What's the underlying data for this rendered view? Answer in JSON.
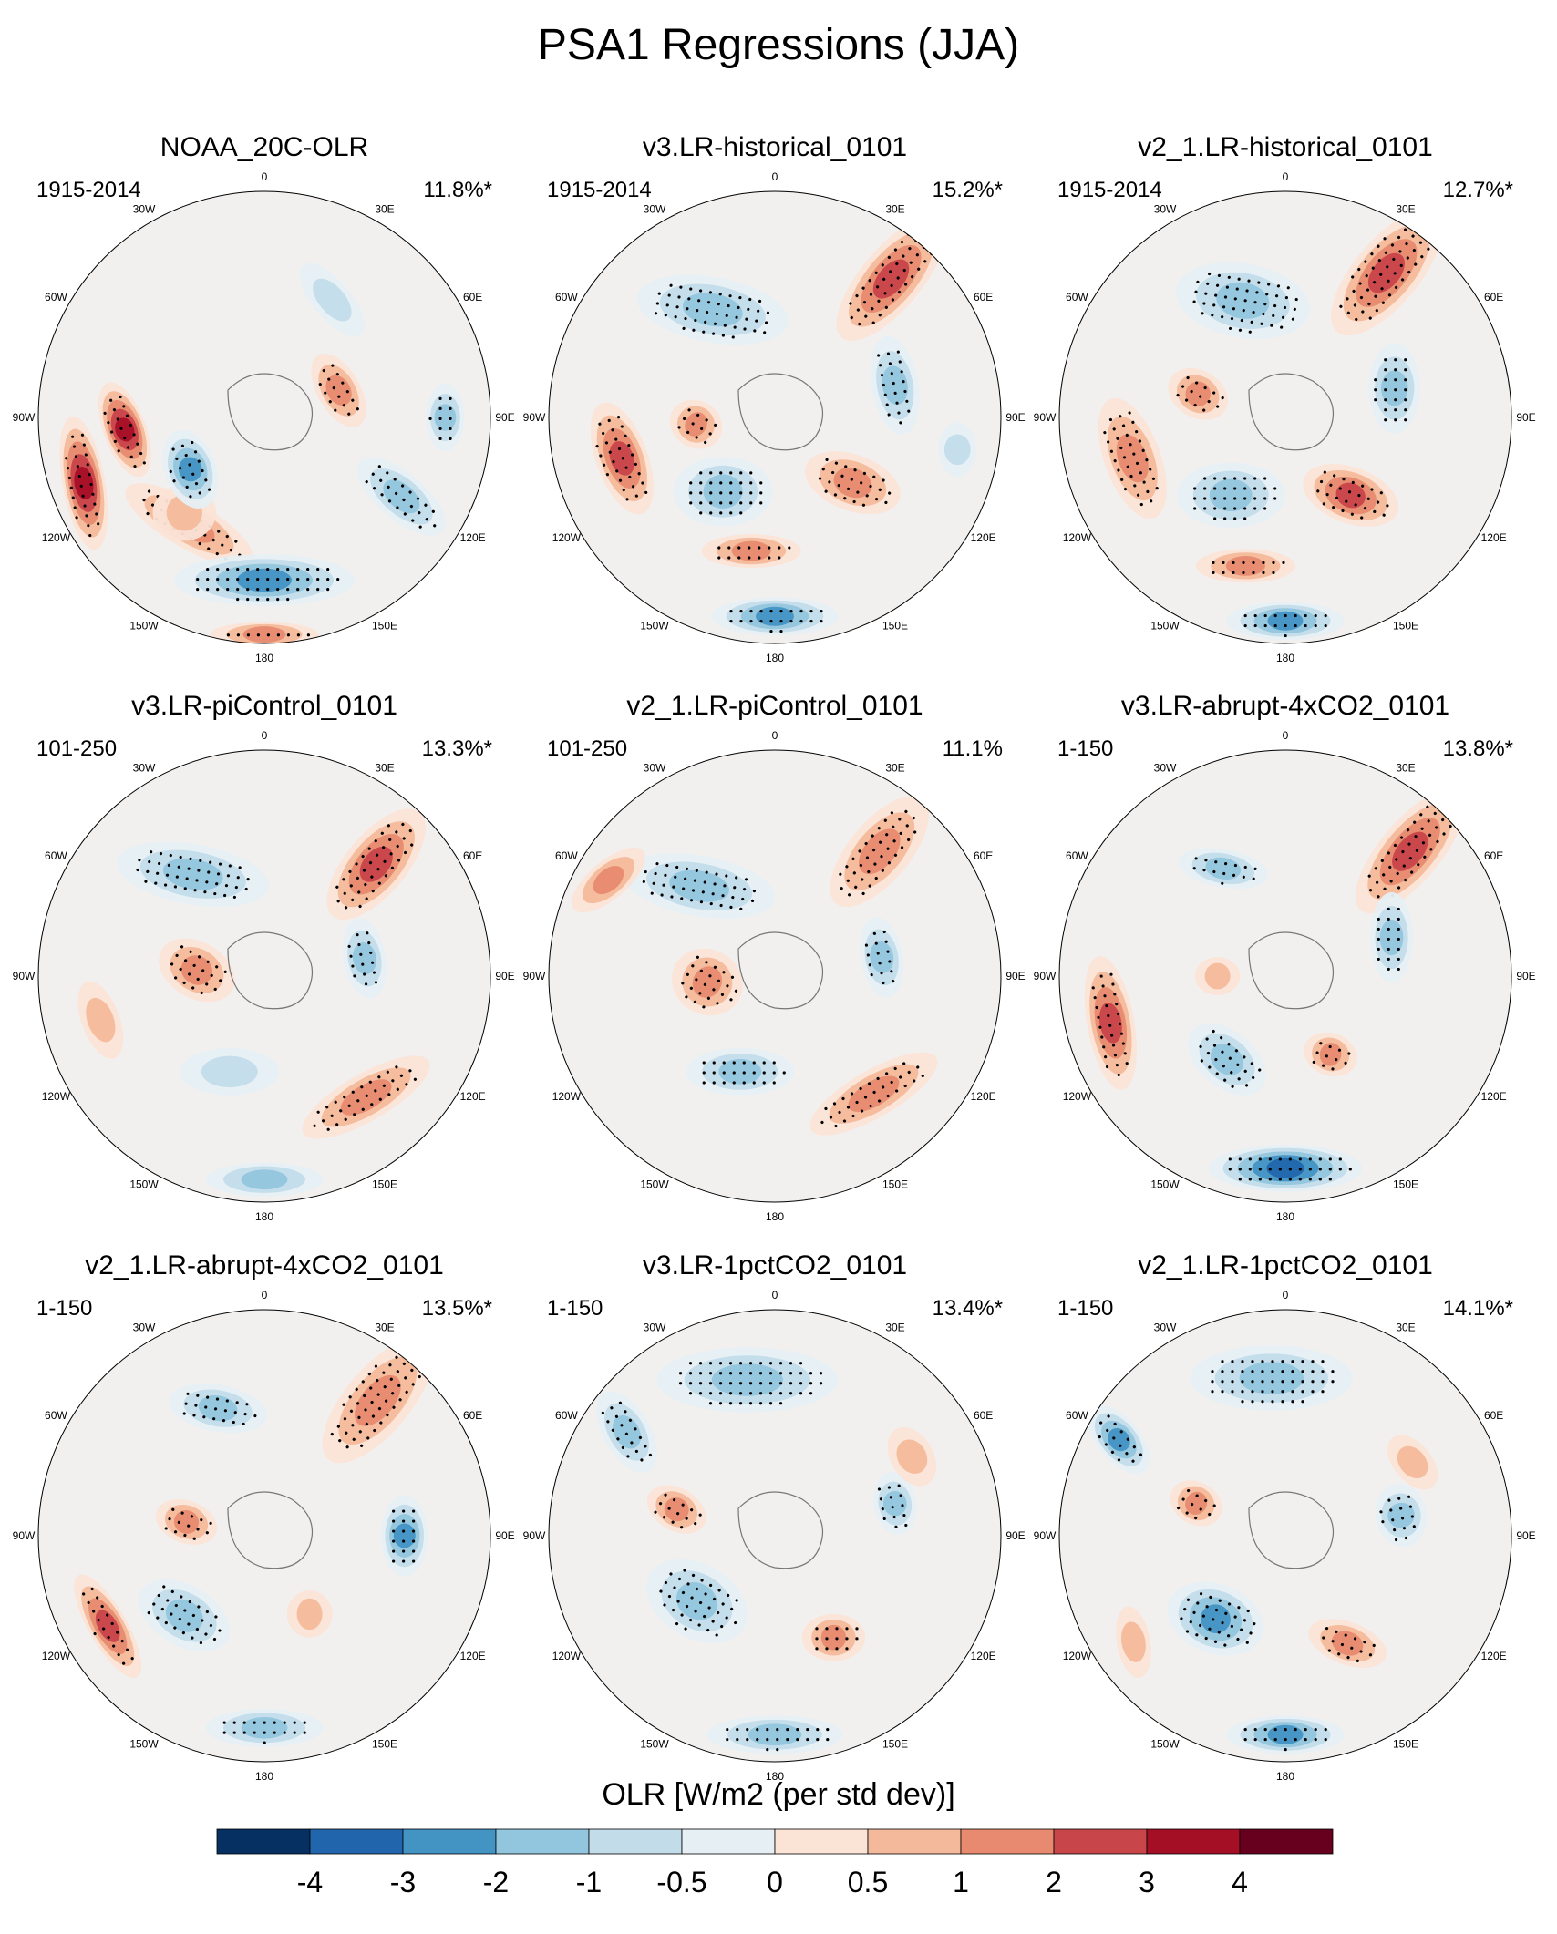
{
  "title": "PSA1 Regressions (JJA)",
  "colorbar": {
    "title": "OLR [W/m2 (per std dev)]",
    "tick_labels": [
      "-4",
      "-3",
      "-2",
      "-1",
      "-0.5",
      "0",
      "0.5",
      "1",
      "2",
      "3",
      "4"
    ],
    "colors": [
      "#053061",
      "#2166ac",
      "#4393c3",
      "#92c5de",
      "#c3dcea",
      "#e6eff4",
      "#fbe3d6",
      "#f4b99b",
      "#e78a6f",
      "#c8454a",
      "#a50f26",
      "#67001f"
    ]
  },
  "longitude_labels": [
    "0",
    "30E",
    "60E",
    "90E",
    "120E",
    "150E",
    "180",
    "150W",
    "120W",
    "90W",
    "60W",
    "30W"
  ],
  "chart_data": [
    {
      "type": "polar-contour",
      "name": "NOAA_20C-OLR",
      "years": "1915-2014",
      "variance": "11.8%*",
      "anomalies": [
        {
          "lon": 265,
          "r": 0.62,
          "rx": 0.22,
          "ry": 0.07,
          "rot": 70,
          "v": 3.5
        },
        {
          "lon": 250,
          "r": 0.85,
          "rx": 0.3,
          "ry": 0.07,
          "rot": 80,
          "v": 3.2
        },
        {
          "lon": 215,
          "r": 0.58,
          "rx": 0.32,
          "ry": 0.08,
          "rot": 30,
          "v": 1.5
        },
        {
          "lon": 220,
          "r": 0.55,
          "rx": 0.14,
          "ry": 0.1,
          "rot": 0,
          "v": 0.8
        },
        {
          "lon": 180,
          "r": 0.72,
          "rx": 0.4,
          "ry": 0.09,
          "rot": 0,
          "v": -2.5
        },
        {
          "lon": 235,
          "r": 0.4,
          "rx": 0.18,
          "ry": 0.09,
          "rot": 70,
          "v": -2.6
        },
        {
          "lon": 120,
          "r": 0.7,
          "rx": 0.24,
          "ry": 0.08,
          "rot": 40,
          "v": -1.8
        },
        {
          "lon": 90,
          "r": 0.8,
          "rx": 0.15,
          "ry": 0.06,
          "rot": 90,
          "v": -1.2
        },
        {
          "lon": 70,
          "r": 0.35,
          "rx": 0.18,
          "ry": 0.07,
          "rot": 60,
          "v": 1.6
        },
        {
          "lon": 30,
          "r": 0.6,
          "rx": 0.2,
          "ry": 0.06,
          "rot": 50,
          "v": -0.9
        },
        {
          "lon": 180,
          "r": 0.96,
          "rx": 0.24,
          "ry": 0.03,
          "rot": 0,
          "v": 2.0
        }
      ]
    },
    {
      "type": "polar-contour",
      "name": "v3.LR-historical_0101",
      "years": "1915-2014",
      "variance": "15.2%*",
      "anomalies": [
        {
          "lon": 40,
          "r": 0.8,
          "rx": 0.34,
          "ry": 0.11,
          "rot": 130,
          "v": 2.8
        },
        {
          "lon": 330,
          "r": 0.55,
          "rx": 0.34,
          "ry": 0.12,
          "rot": 10,
          "v": -1.3
        },
        {
          "lon": 255,
          "r": 0.7,
          "rx": 0.26,
          "ry": 0.09,
          "rot": 70,
          "v": 2.4
        },
        {
          "lon": 265,
          "r": 0.35,
          "rx": 0.12,
          "ry": 0.08,
          "rot": 30,
          "v": 1.8
        },
        {
          "lon": 215,
          "r": 0.4,
          "rx": 0.22,
          "ry": 0.13,
          "rot": 0,
          "v": -1.5
        },
        {
          "lon": 180,
          "r": 0.88,
          "rx": 0.28,
          "ry": 0.06,
          "rot": 0,
          "v": -3.0
        },
        {
          "lon": 190,
          "r": 0.6,
          "rx": 0.22,
          "ry": 0.05,
          "rot": 0,
          "v": 1.2
        },
        {
          "lon": 130,
          "r": 0.45,
          "rx": 0.22,
          "ry": 0.1,
          "rot": 20,
          "v": 1.7
        },
        {
          "lon": 75,
          "r": 0.55,
          "rx": 0.22,
          "ry": 0.08,
          "rot": 80,
          "v": -1.6
        },
        {
          "lon": 100,
          "r": 0.82,
          "rx": 0.12,
          "ry": 0.06,
          "rot": 90,
          "v": -1.0
        }
      ]
    },
    {
      "type": "polar-contour",
      "name": "v2_1.LR-historical_0101",
      "years": "1915-2014",
      "variance": "12.7%*",
      "anomalies": [
        {
          "lon": 35,
          "r": 0.78,
          "rx": 0.34,
          "ry": 0.12,
          "rot": 130,
          "v": 2.4
        },
        {
          "lon": 340,
          "r": 0.55,
          "rx": 0.3,
          "ry": 0.14,
          "rot": 10,
          "v": -1.6
        },
        {
          "lon": 255,
          "r": 0.7,
          "rx": 0.28,
          "ry": 0.1,
          "rot": 70,
          "v": 1.8
        },
        {
          "lon": 285,
          "r": 0.4,
          "rx": 0.14,
          "ry": 0.08,
          "rot": 30,
          "v": 1.5
        },
        {
          "lon": 215,
          "r": 0.42,
          "rx": 0.24,
          "ry": 0.12,
          "rot": 0,
          "v": -1.8
        },
        {
          "lon": 140,
          "r": 0.45,
          "rx": 0.22,
          "ry": 0.1,
          "rot": 20,
          "v": 2.6
        },
        {
          "lon": 180,
          "r": 0.9,
          "rx": 0.26,
          "ry": 0.06,
          "rot": 0,
          "v": -2.2
        },
        {
          "lon": 75,
          "r": 0.5,
          "rx": 0.2,
          "ry": 0.09,
          "rot": 90,
          "v": -2.0
        },
        {
          "lon": 195,
          "r": 0.68,
          "rx": 0.22,
          "ry": 0.05,
          "rot": 0,
          "v": 1.3
        }
      ]
    },
    {
      "type": "polar-contour",
      "name": "v3.LR-piControl_0101",
      "years": "101-250",
      "variance": "13.3%*",
      "anomalies": [
        {
          "lon": 45,
          "r": 0.7,
          "rx": 0.3,
          "ry": 0.11,
          "rot": 130,
          "v": 2.2
        },
        {
          "lon": 325,
          "r": 0.55,
          "rx": 0.34,
          "ry": 0.11,
          "rot": 10,
          "v": -1.4
        },
        {
          "lon": 275,
          "r": 0.3,
          "rx": 0.18,
          "ry": 0.1,
          "rot": 30,
          "v": 1.5
        },
        {
          "lon": 200,
          "r": 0.45,
          "rx": 0.22,
          "ry": 0.08,
          "rot": 0,
          "v": -1.0
        },
        {
          "lon": 140,
          "r": 0.7,
          "rx": 0.32,
          "ry": 0.08,
          "rot": 150,
          "v": 1.6
        },
        {
          "lon": 180,
          "r": 0.9,
          "rx": 0.26,
          "ry": 0.05,
          "rot": 0,
          "v": -1.1
        },
        {
          "lon": 80,
          "r": 0.45,
          "rx": 0.18,
          "ry": 0.07,
          "rot": 80,
          "v": -1.3
        },
        {
          "lon": 255,
          "r": 0.75,
          "rx": 0.18,
          "ry": 0.06,
          "rot": 70,
          "v": 1.0
        }
      ]
    },
    {
      "type": "polar-contour",
      "name": "v2_1.LR-piControl_0101",
      "years": "101-250",
      "variance": "11.1%",
      "anomalies": [
        {
          "lon": 40,
          "r": 0.72,
          "rx": 0.3,
          "ry": 0.11,
          "rot": 130,
          "v": 1.9
        },
        {
          "lon": 320,
          "r": 0.52,
          "rx": 0.34,
          "ry": 0.11,
          "rot": 10,
          "v": -1.5
        },
        {
          "lon": 265,
          "r": 0.3,
          "rx": 0.16,
          "ry": 0.12,
          "rot": 30,
          "v": 2.0
        },
        {
          "lon": 200,
          "r": 0.45,
          "rx": 0.24,
          "ry": 0.08,
          "rot": 0,
          "v": -1.2
        },
        {
          "lon": 140,
          "r": 0.68,
          "rx": 0.32,
          "ry": 0.08,
          "rot": 150,
          "v": 1.7
        },
        {
          "lon": 80,
          "r": 0.48,
          "rx": 0.18,
          "ry": 0.07,
          "rot": 80,
          "v": -1.4
        },
        {
          "lon": 300,
          "r": 0.85,
          "rx": 0.2,
          "ry": 0.06,
          "rot": 140,
          "v": 1.1
        }
      ]
    },
    {
      "type": "polar-contour",
      "name": "v3.LR-abrupt-4xCO2_0101",
      "years": "1-150",
      "variance": "13.8%*",
      "anomalies": [
        {
          "lon": 45,
          "r": 0.78,
          "rx": 0.34,
          "ry": 0.11,
          "rot": 130,
          "v": 2.3
        },
        {
          "lon": 255,
          "r": 0.8,
          "rx": 0.3,
          "ry": 0.08,
          "rot": 80,
          "v": 2.5
        },
        {
          "lon": 180,
          "r": 0.85,
          "rx": 0.34,
          "ry": 0.08,
          "rot": 0,
          "v": -3.2
        },
        {
          "lon": 215,
          "r": 0.45,
          "rx": 0.2,
          "ry": 0.1,
          "rot": 40,
          "v": -2.0
        },
        {
          "lon": 330,
          "r": 0.55,
          "rx": 0.2,
          "ry": 0.06,
          "rot": 10,
          "v": -1.2
        },
        {
          "lon": 70,
          "r": 0.5,
          "rx": 0.2,
          "ry": 0.07,
          "rot": 90,
          "v": -1.4
        },
        {
          "lon": 150,
          "r": 0.4,
          "rx": 0.12,
          "ry": 0.07,
          "rot": 20,
          "v": 1.2
        },
        {
          "lon": 270,
          "r": 0.3,
          "rx": 0.1,
          "ry": 0.06,
          "rot": 0,
          "v": 1.0
        }
      ]
    },
    {
      "type": "polar-contour",
      "name": "v2_1.LR-abrupt-4xCO2_0101",
      "years": "1-150",
      "variance": "13.5%*",
      "anomalies": [
        {
          "lon": 40,
          "r": 0.78,
          "rx": 0.34,
          "ry": 0.12,
          "rot": 130,
          "v": 2.0
        },
        {
          "lon": 340,
          "r": 0.6,
          "rx": 0.22,
          "ry": 0.08,
          "rot": 10,
          "v": -1.8
        },
        {
          "lon": 90,
          "r": 0.62,
          "rx": 0.18,
          "ry": 0.08,
          "rot": 90,
          "v": -2.4
        },
        {
          "lon": 240,
          "r": 0.8,
          "rx": 0.26,
          "ry": 0.06,
          "rot": 60,
          "v": 2.4
        },
        {
          "lon": 225,
          "r": 0.5,
          "rx": 0.22,
          "ry": 0.11,
          "rot": 30,
          "v": -2.0
        },
        {
          "lon": 180,
          "r": 0.85,
          "rx": 0.26,
          "ry": 0.06,
          "rot": 0,
          "v": -1.6
        },
        {
          "lon": 280,
          "r": 0.35,
          "rx": 0.14,
          "ry": 0.07,
          "rot": 20,
          "v": 1.4
        },
        {
          "lon": 150,
          "r": 0.4,
          "rx": 0.1,
          "ry": 0.08,
          "rot": 0,
          "v": 1.0
        }
      ]
    },
    {
      "type": "polar-contour",
      "name": "v3.LR-1pctCO2_0101",
      "years": "1-150",
      "variance": "13.4%*",
      "anomalies": [
        {
          "lon": 350,
          "r": 0.7,
          "rx": 0.4,
          "ry": 0.12,
          "rot": 0,
          "v": -1.8
        },
        {
          "lon": 305,
          "r": 0.8,
          "rx": 0.2,
          "ry": 0.08,
          "rot": 60,
          "v": -1.5
        },
        {
          "lon": 230,
          "r": 0.45,
          "rx": 0.24,
          "ry": 0.14,
          "rot": 30,
          "v": -1.6
        },
        {
          "lon": 180,
          "r": 0.88,
          "rx": 0.3,
          "ry": 0.06,
          "rot": 0,
          "v": -1.4
        },
        {
          "lon": 75,
          "r": 0.55,
          "rx": 0.14,
          "ry": 0.07,
          "rot": 80,
          "v": -1.2
        },
        {
          "lon": 150,
          "r": 0.52,
          "rx": 0.14,
          "ry": 0.08,
          "rot": 0,
          "v": 1.8
        },
        {
          "lon": 285,
          "r": 0.45,
          "rx": 0.14,
          "ry": 0.07,
          "rot": 30,
          "v": 1.4
        },
        {
          "lon": 60,
          "r": 0.7,
          "rx": 0.14,
          "ry": 0.07,
          "rot": 60,
          "v": 0.8
        }
      ]
    },
    {
      "type": "polar-contour",
      "name": "v2_1.LR-1pctCO2_0101",
      "years": "1-150",
      "variance": "14.1%*",
      "anomalies": [
        {
          "lon": 355,
          "r": 0.7,
          "rx": 0.36,
          "ry": 0.12,
          "rot": 0,
          "v": -1.9
        },
        {
          "lon": 300,
          "r": 0.85,
          "rx": 0.18,
          "ry": 0.07,
          "rot": 50,
          "v": -2.2
        },
        {
          "lon": 220,
          "r": 0.48,
          "rx": 0.22,
          "ry": 0.13,
          "rot": 20,
          "v": -2.4
        },
        {
          "lon": 180,
          "r": 0.88,
          "rx": 0.26,
          "ry": 0.06,
          "rot": 0,
          "v": -2.2
        },
        {
          "lon": 80,
          "r": 0.52,
          "rx": 0.14,
          "ry": 0.09,
          "rot": 80,
          "v": -1.8
        },
        {
          "lon": 150,
          "r": 0.55,
          "rx": 0.18,
          "ry": 0.07,
          "rot": 20,
          "v": 1.6
        },
        {
          "lon": 290,
          "r": 0.42,
          "rx": 0.12,
          "ry": 0.07,
          "rot": 30,
          "v": 1.4
        },
        {
          "lon": 60,
          "r": 0.65,
          "rx": 0.14,
          "ry": 0.06,
          "rot": 50,
          "v": 1.0
        },
        {
          "lon": 235,
          "r": 0.82,
          "rx": 0.16,
          "ry": 0.05,
          "rot": 80,
          "v": 0.8
        }
      ]
    }
  ]
}
